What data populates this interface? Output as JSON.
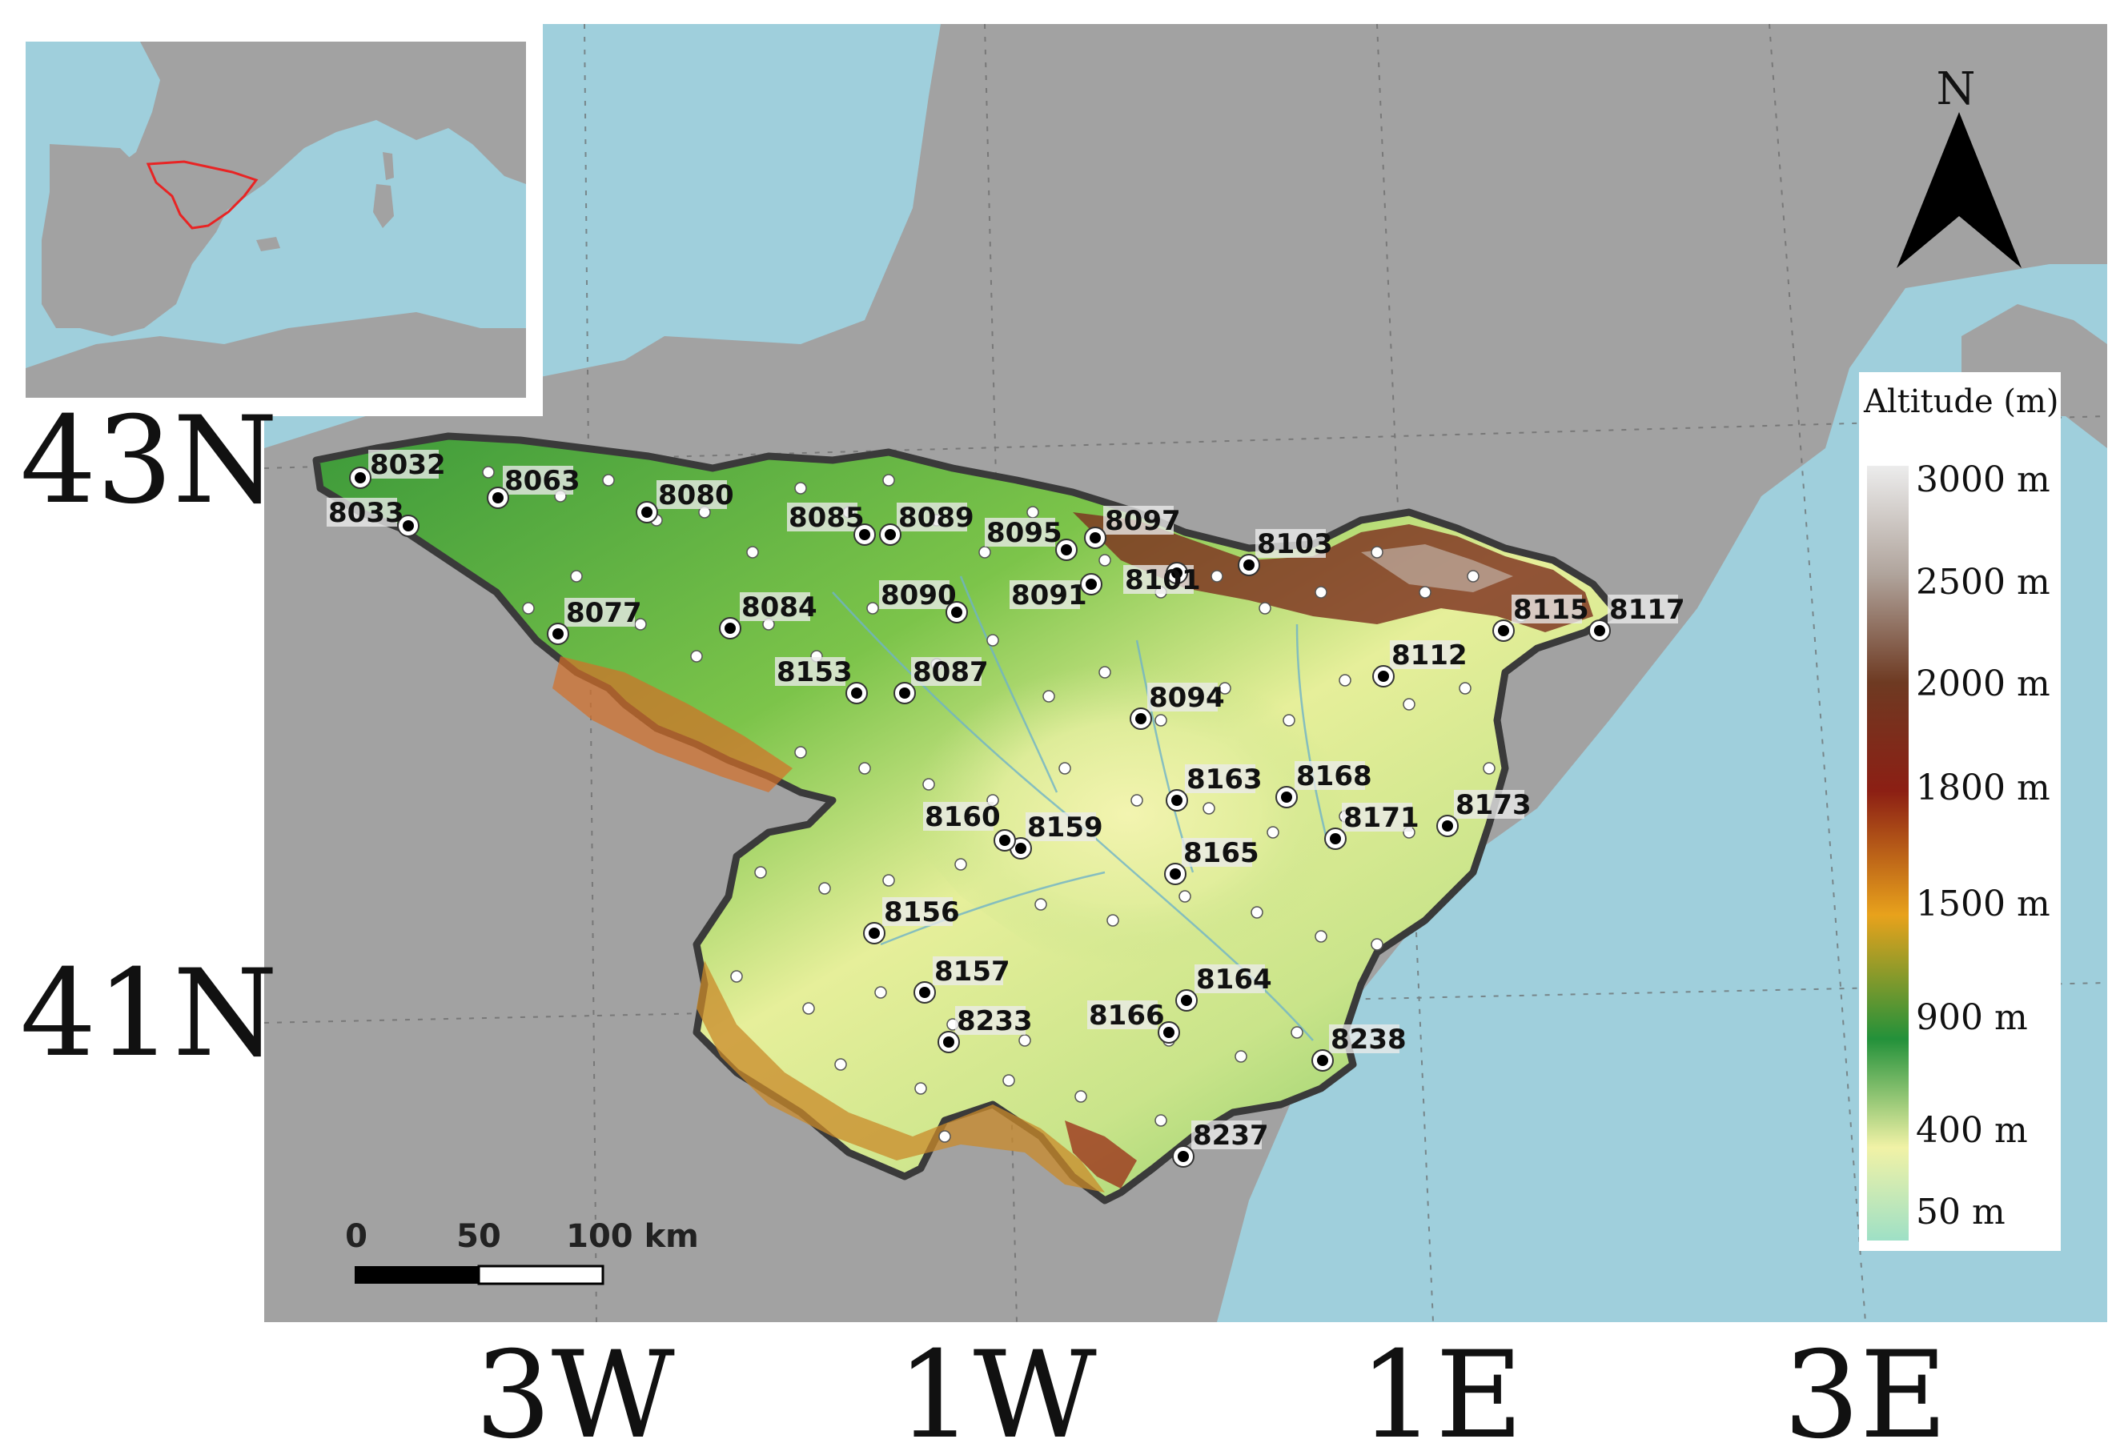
{
  "latitude_labels": [
    "43N",
    "41N"
  ],
  "longitude_labels": [
    "3W",
    "1W",
    "1E",
    "3E"
  ],
  "north_arrow": {
    "label": "N"
  },
  "legend": {
    "title": "Altitude (m)",
    "stops": [
      {
        "label": "3000 m",
        "color": "#e4e4e4"
      },
      {
        "label": "2500 m",
        "color": "#9c8d84"
      },
      {
        "label": "2000 m",
        "color": "#5a2e1c"
      },
      {
        "label": "1800 m",
        "color": "#8c1f14"
      },
      {
        "label": "1500 m",
        "color": "#e8a21c"
      },
      {
        "label": "900 m",
        "color": "#23913a"
      },
      {
        "label": "400 m",
        "color": "#f1f2a6"
      },
      {
        "label": "50 m",
        "color": "#9ee0c6"
      }
    ]
  },
  "scale_bar": {
    "labels": [
      "0",
      "50",
      "100 km"
    ]
  },
  "colors": {
    "sea": "#9fcfdc",
    "land": "#a2a2a2",
    "basin_outline": "#3a3a3a",
    "inset_highlight": "#e82424"
  },
  "stations": [
    {
      "id": "8032"
    },
    {
      "id": "8033"
    },
    {
      "id": "8063"
    },
    {
      "id": "8077"
    },
    {
      "id": "8080"
    },
    {
      "id": "8084"
    },
    {
      "id": "8085"
    },
    {
      "id": "8087"
    },
    {
      "id": "8089"
    },
    {
      "id": "8090"
    },
    {
      "id": "8091"
    },
    {
      "id": "8094"
    },
    {
      "id": "8095"
    },
    {
      "id": "8097"
    },
    {
      "id": "8101"
    },
    {
      "id": "8103"
    },
    {
      "id": "8112"
    },
    {
      "id": "8115"
    },
    {
      "id": "8117"
    },
    {
      "id": "8153"
    },
    {
      "id": "8156"
    },
    {
      "id": "8157"
    },
    {
      "id": "8159"
    },
    {
      "id": "8160"
    },
    {
      "id": "8163"
    },
    {
      "id": "8164"
    },
    {
      "id": "8165"
    },
    {
      "id": "8166"
    },
    {
      "id": "8168"
    },
    {
      "id": "8171"
    },
    {
      "id": "8173"
    },
    {
      "id": "8233"
    },
    {
      "id": "8237"
    },
    {
      "id": "8238"
    }
  ]
}
